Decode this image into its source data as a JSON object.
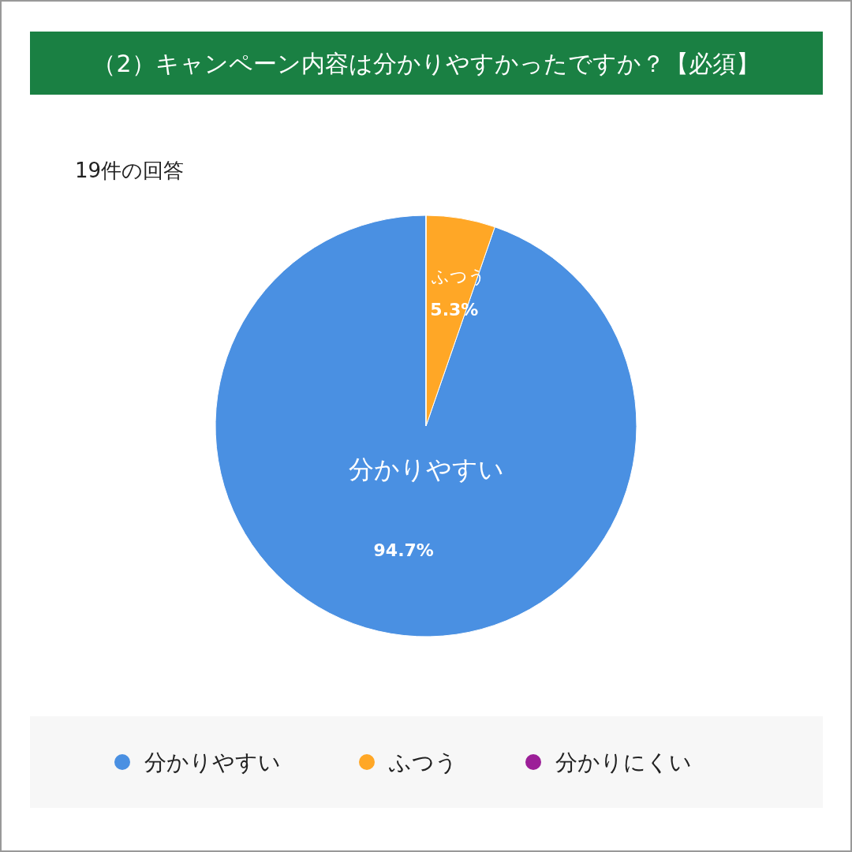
{
  "chart_data": {
    "type": "pie",
    "title": "（2）キャンペーン内容は分かりやすかったですか？【必須】",
    "subtitle": "19件の回答",
    "categories": [
      "分かりやすい",
      "ふつう",
      "分かりにくい"
    ],
    "values": [
      94.7,
      5.3,
      0
    ],
    "colors": [
      "#4a90e2",
      "#ffa726",
      "#9c1f98"
    ],
    "value_labels": [
      "94.7%",
      "5.3%",
      null
    ],
    "legend": "bottom"
  }
}
